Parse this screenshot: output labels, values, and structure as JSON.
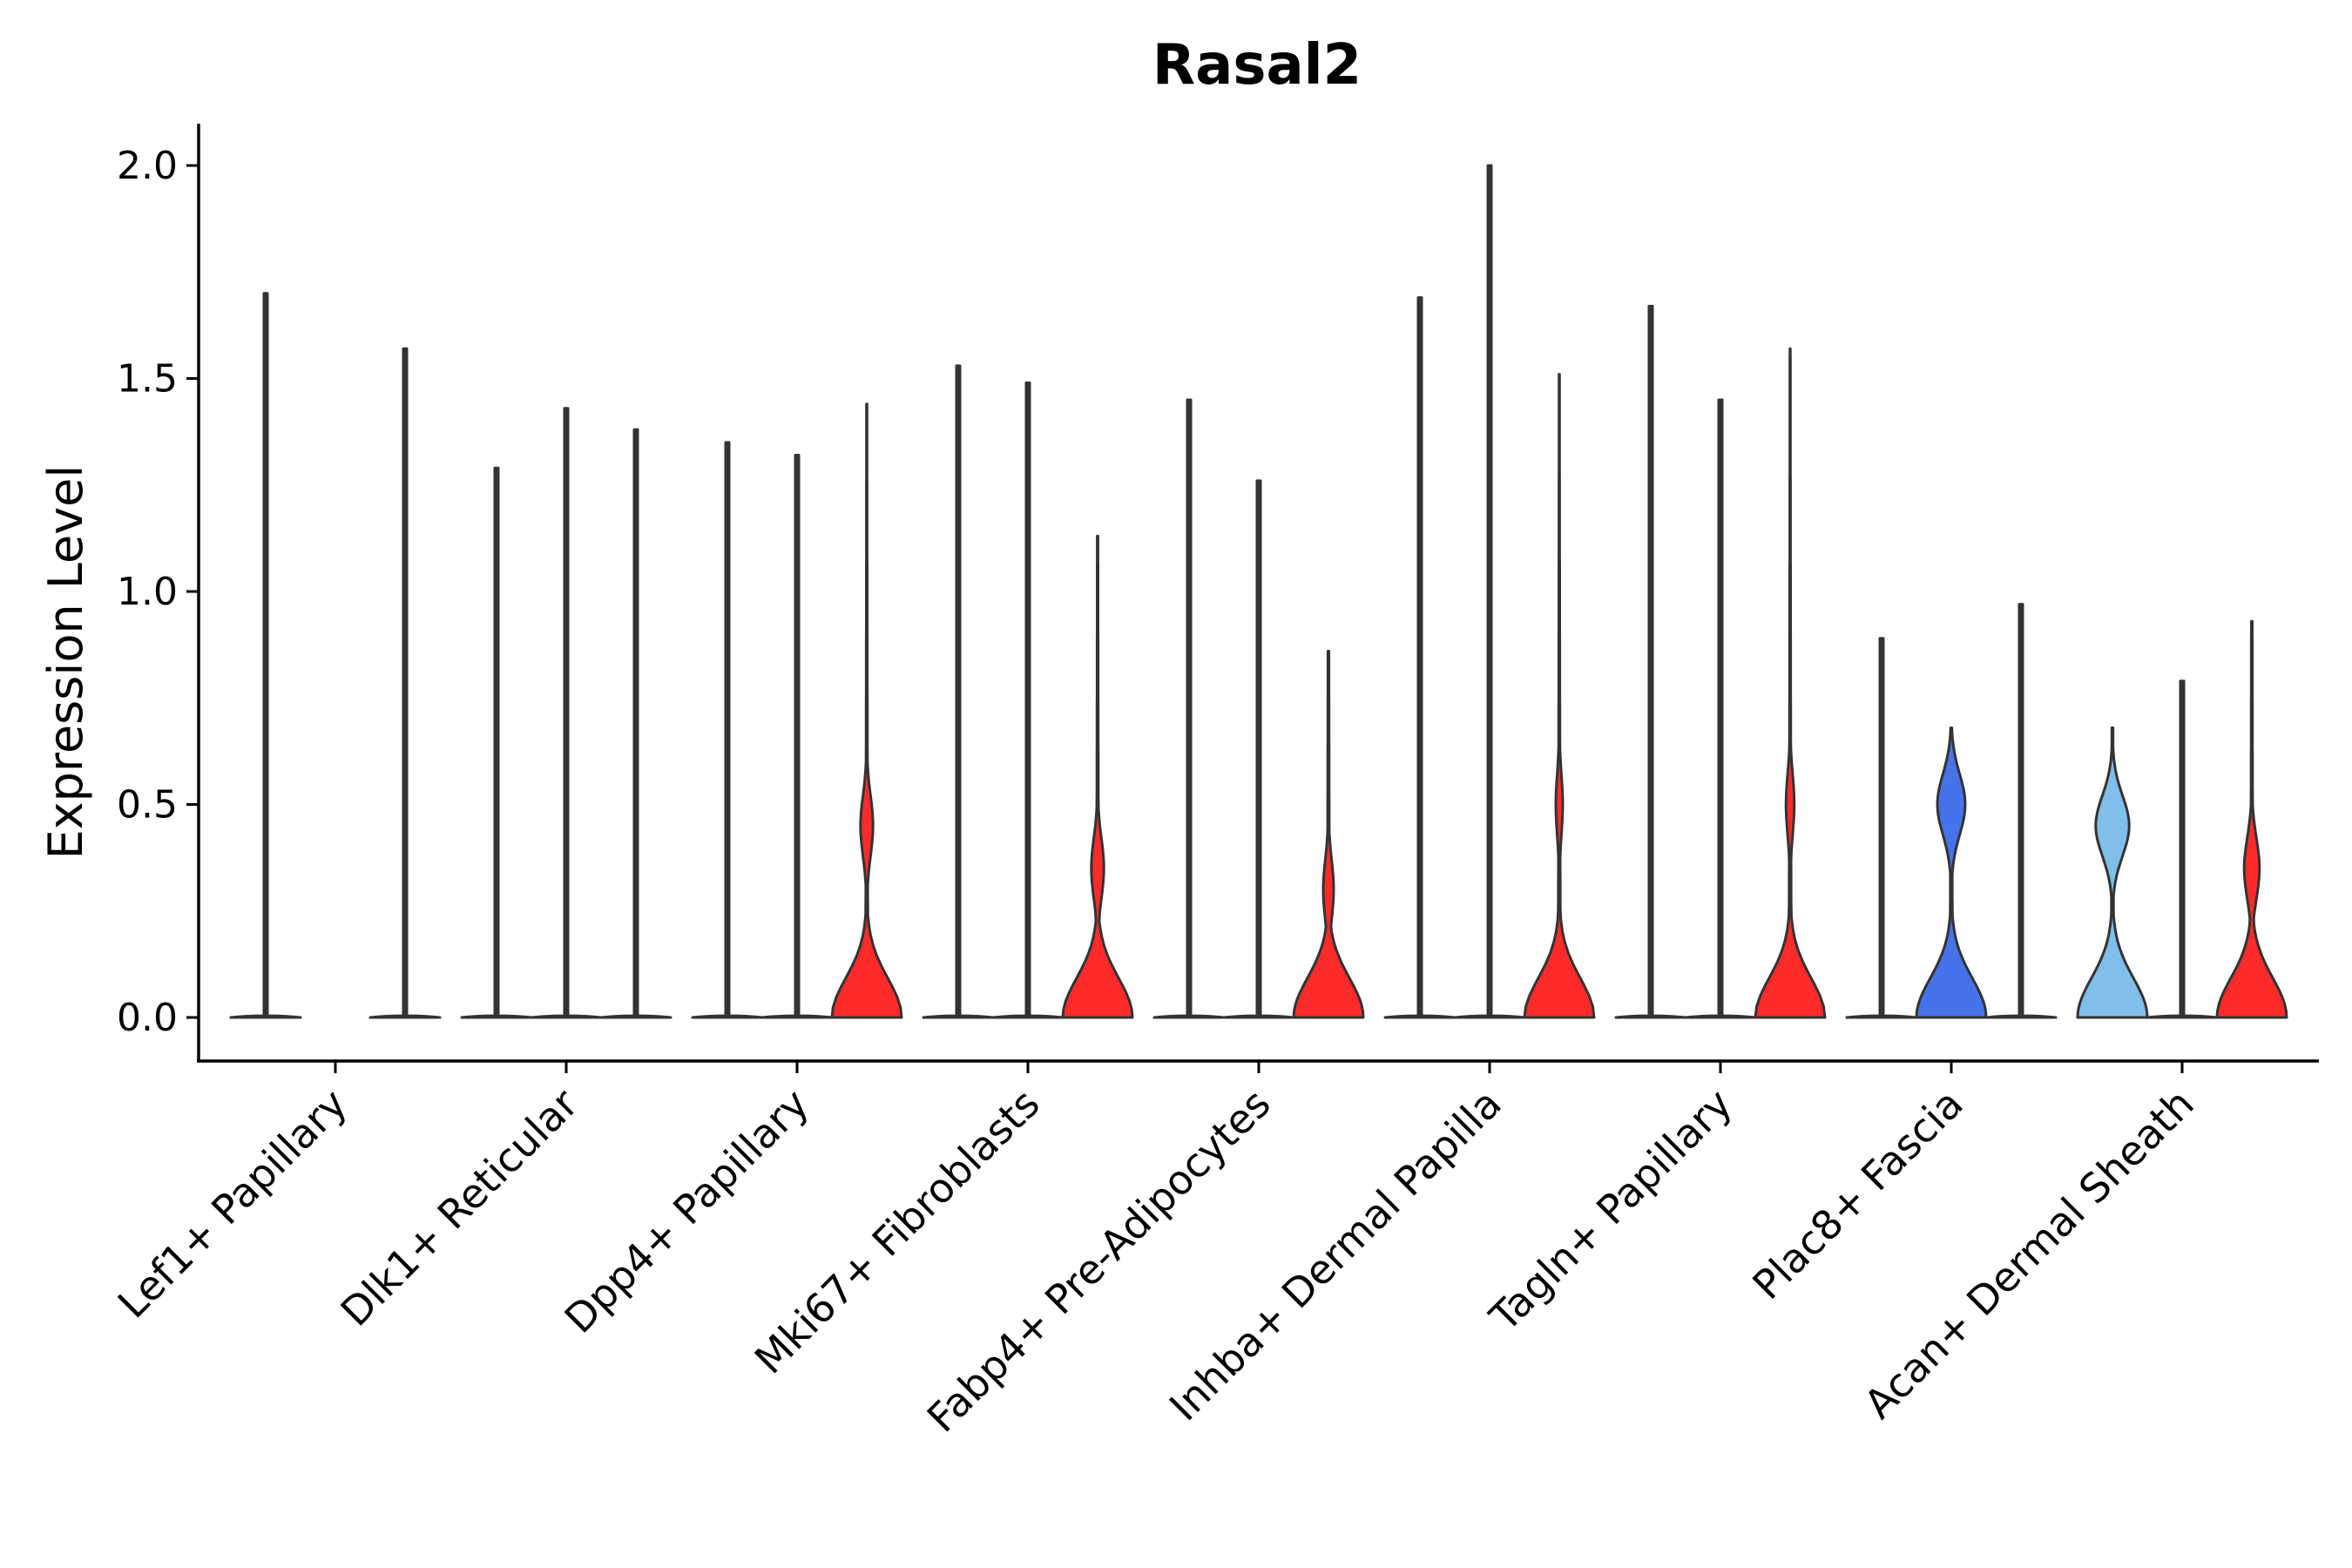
{
  "chart_data": {
    "type": "violin",
    "title": "Rasal2",
    "xlabel": "",
    "ylabel": "Expression Level",
    "ylim": [
      -0.1,
      2.1
    ],
    "yticks": [
      "0.0",
      "0.5",
      "1.0",
      "1.5",
      "2.0"
    ],
    "grid": false,
    "legend": "none",
    "colors": {
      "red": "#ff2a2a",
      "blue": "#4672ea",
      "light_blue": "#7fbfea",
      "outline": "#333333"
    },
    "categories": [
      "Lef1+ Papillary",
      "Dlk1+ Reticular",
      "Dpp4+ Papillary",
      "Mki67+ Fibroblasts",
      "Fabp4+ Pre-Adipocytes",
      "Inhba+ Dermal Papilla",
      "Tagln+ Papillary",
      "Plac8+ Fascia",
      "Acan+ Dermal Sheath"
    ],
    "series": [
      {
        "name": "Lef1+ Papillary",
        "violins": [
          {
            "slot": 0,
            "max": 1.7,
            "fill": "",
            "shape": "flat"
          },
          {
            "slot": 2,
            "max": 1.57,
            "fill": "",
            "shape": "flat"
          }
        ]
      },
      {
        "name": "Dlk1+ Reticular",
        "violins": [
          {
            "slot": 0,
            "max": 1.29,
            "fill": "",
            "shape": "flat"
          },
          {
            "slot": 1,
            "max": 1.43,
            "fill": "",
            "shape": "flat"
          },
          {
            "slot": 2,
            "max": 1.38,
            "fill": "",
            "shape": "flat"
          }
        ]
      },
      {
        "name": "Dpp4+ Papillary",
        "violins": [
          {
            "slot": 0,
            "max": 1.35,
            "fill": "",
            "shape": "flat"
          },
          {
            "slot": 1,
            "max": 1.32,
            "fill": "",
            "shape": "flat"
          },
          {
            "slot": 2,
            "max": 1.44,
            "fill": "#ff2a2a",
            "shape": "body",
            "mode": 0.45,
            "hump": 0.18
          }
        ]
      },
      {
        "name": "Mki67+ Fibroblasts",
        "violins": [
          {
            "slot": 0,
            "max": 1.53,
            "fill": "",
            "shape": "flat"
          },
          {
            "slot": 1,
            "max": 1.49,
            "fill": "",
            "shape": "flat"
          },
          {
            "slot": 2,
            "max": 1.13,
            "fill": "#ff2a2a",
            "shape": "body",
            "mode": 0.35,
            "hump": 0.18
          }
        ]
      },
      {
        "name": "Fabp4+ Pre-Adipocytes",
        "violins": [
          {
            "slot": 0,
            "max": 1.45,
            "fill": "",
            "shape": "flat"
          },
          {
            "slot": 1,
            "max": 1.26,
            "fill": "",
            "shape": "flat"
          },
          {
            "slot": 2,
            "max": 0.86,
            "fill": "#ff2a2a",
            "shape": "body",
            "mode": 0.3,
            "hump": 0.15
          }
        ]
      },
      {
        "name": "Inhba+ Dermal Papilla",
        "violins": [
          {
            "slot": 0,
            "max": 1.69,
            "fill": "",
            "shape": "flat"
          },
          {
            "slot": 1,
            "max": 2.0,
            "fill": "",
            "shape": "flat"
          },
          {
            "slot": 2,
            "max": 1.51,
            "fill": "#ff2a2a",
            "shape": "body",
            "mode": 0.5,
            "hump": 0.1
          }
        ]
      },
      {
        "name": "Tagln+ Papillary",
        "violins": [
          {
            "slot": 0,
            "max": 1.67,
            "fill": "",
            "shape": "flat"
          },
          {
            "slot": 1,
            "max": 1.45,
            "fill": "",
            "shape": "flat"
          },
          {
            "slot": 2,
            "max": 1.57,
            "fill": "#ff2a2a",
            "shape": "body",
            "mode": 0.5,
            "hump": 0.12
          }
        ]
      },
      {
        "name": "Plac8+ Fascia",
        "violins": [
          {
            "slot": 0,
            "max": 0.89,
            "fill": "",
            "shape": "flat"
          },
          {
            "slot": 1,
            "max": 0.68,
            "fill": "#4672ea",
            "shape": "body",
            "mode": 0.5,
            "hump": 0.4
          },
          {
            "slot": 2,
            "max": 0.97,
            "fill": "",
            "shape": "flat"
          }
        ]
      },
      {
        "name": "Acan+ Dermal Sheath",
        "violins": [
          {
            "slot": 0,
            "max": 0.68,
            "fill": "#7fbfea",
            "shape": "body",
            "mode": 0.45,
            "hump": 0.48
          },
          {
            "slot": 1,
            "max": 0.79,
            "fill": "",
            "shape": "flat"
          },
          {
            "slot": 2,
            "max": 0.93,
            "fill": "#ff2a2a",
            "shape": "body",
            "mode": 0.35,
            "hump": 0.22
          }
        ]
      }
    ]
  }
}
